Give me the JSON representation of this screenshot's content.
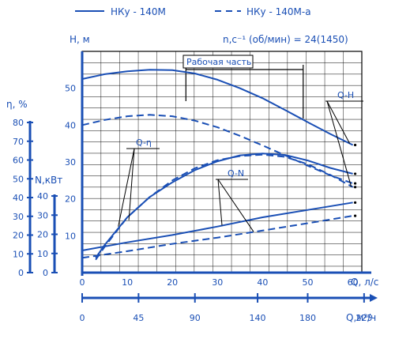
{
  "chart_data": {
    "type": "line",
    "legend": [
      {
        "label": "НКу - 140М",
        "style": "solid"
      },
      {
        "label": "НКу - 140М-а",
        "style": "dashed"
      }
    ],
    "speed_label": "n,с⁻¹ (об/мин) = 24(1450)",
    "working_zone_label": "Рабочая часть",
    "working_zone": {
      "q_from": 23,
      "q_to": 49
    },
    "xlabel": "Q, л/с",
    "xlabel_m3": "Q,м³/ч",
    "ylabel_main": "Н, м",
    "ylabel_eta": "η, %",
    "ylabel_N": "N,кВт",
    "xlim": [
      0,
      62
    ],
    "ylim": [
      0,
      60
    ],
    "x_ticks": [
      0,
      10,
      20,
      30,
      40,
      50,
      60
    ],
    "y_ticks": [
      10,
      20,
      30,
      40,
      50
    ],
    "m3h_ticks": [
      0,
      45,
      90,
      140,
      180,
      225
    ],
    "eta_ticks": [
      0,
      10,
      20,
      30,
      40,
      50,
      60,
      70,
      80
    ],
    "N_ticks": [
      0,
      10,
      20,
      30,
      40
    ],
    "curve_labels": {
      "qh": "Q-Н",
      "qeta": "Q-η",
      "qn": "Q-N"
    },
    "series": [
      {
        "name": "НКу - 140М",
        "curve": "Q-Н",
        "style": "solid",
        "x": [
          0,
          5,
          10,
          15,
          20,
          25,
          30,
          35,
          40,
          45,
          50,
          55,
          60
        ],
        "y": [
          52.5,
          53.8,
          54.6,
          55,
          54.9,
          54,
          52.3,
          50,
          47.3,
          44.1,
          40.8,
          37.6,
          34.6
        ]
      },
      {
        "name": "НКу - 140М-а",
        "curve": "Q-Н",
        "style": "dashed",
        "x": [
          0,
          5,
          10,
          15,
          20,
          25,
          30,
          35,
          40,
          45,
          50,
          55,
          60
        ],
        "y": [
          40,
          41.4,
          42.4,
          42.8,
          42.4,
          41.2,
          39.4,
          37.1,
          34.5,
          31.8,
          29,
          26.4,
          24.2
        ]
      },
      {
        "name": "НКу - 140М",
        "curve": "Q-η",
        "style": "solid",
        "x": [
          3,
          5,
          10,
          15,
          20,
          25,
          30,
          35,
          40,
          45,
          50,
          55,
          60
        ],
        "y": [
          4,
          7.5,
          15,
          20.5,
          24.5,
          27.8,
          30.2,
          31.8,
          32.3,
          31.9,
          30.4,
          28.4,
          26.8
        ]
      },
      {
        "name": "НКу - 140М-а",
        "curve": "Q-η",
        "style": "dashed",
        "x": [
          3,
          5,
          10,
          15,
          20,
          25,
          30,
          35,
          40,
          45,
          50,
          55,
          60
        ],
        "y": [
          3.5,
          7,
          15,
          20.5,
          25,
          28.3,
          30.5,
          31.6,
          32,
          31.4,
          29.4,
          26.5,
          23.2
        ]
      },
      {
        "name": "НКу - 140М",
        "curve": "Q-N",
        "style": "solid",
        "x": [
          0,
          10,
          20,
          30,
          40,
          50,
          60
        ],
        "y": [
          6,
          8.2,
          10.2,
          12.5,
          15,
          17,
          19
        ]
      },
      {
        "name": "НКу - 140М-а",
        "curve": "Q-N",
        "style": "dashed",
        "x": [
          0,
          10,
          20,
          30,
          40,
          50,
          60
        ],
        "y": [
          4,
          5.8,
          7.8,
          9.5,
          11.4,
          13.4,
          15.4
        ]
      }
    ]
  }
}
